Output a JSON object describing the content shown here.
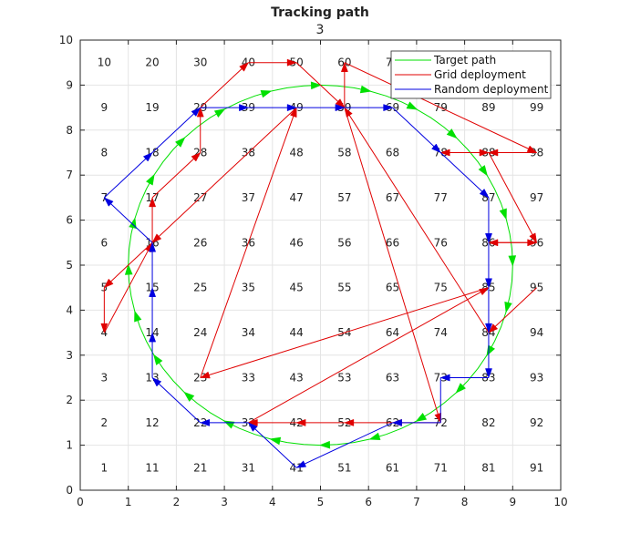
{
  "chart_data": {
    "type": "line",
    "title": "Tracking path",
    "subtitle": "3",
    "xlim": [
      0,
      10
    ],
    "ylim": [
      0,
      10
    ],
    "xticks": [
      "0",
      "1",
      "2",
      "3",
      "4",
      "5",
      "6",
      "7",
      "8",
      "9",
      "10"
    ],
    "yticks": [
      "0",
      "1",
      "2",
      "3",
      "4",
      "5",
      "6",
      "7",
      "8",
      "9",
      "10"
    ],
    "grid": true,
    "legend_position": "top-right",
    "cell_labels": [
      {
        "x": 0.5,
        "y": 9.5,
        "t": "10"
      },
      {
        "x": 0.5,
        "y": 8.5,
        "t": "9"
      },
      {
        "x": 0.5,
        "y": 7.5,
        "t": "8"
      },
      {
        "x": 0.5,
        "y": 6.5,
        "t": "7"
      },
      {
        "x": 0.5,
        "y": 5.5,
        "t": "6"
      },
      {
        "x": 0.5,
        "y": 4.5,
        "t": "5"
      },
      {
        "x": 0.5,
        "y": 3.5,
        "t": "4"
      },
      {
        "x": 0.5,
        "y": 2.5,
        "t": "3"
      },
      {
        "x": 0.5,
        "y": 1.5,
        "t": "2"
      },
      {
        "x": 0.5,
        "y": 0.5,
        "t": "1"
      },
      {
        "x": 1.5,
        "y": 9.5,
        "t": "20"
      },
      {
        "x": 1.5,
        "y": 8.5,
        "t": "19"
      },
      {
        "x": 1.5,
        "y": 7.5,
        "t": "18"
      },
      {
        "x": 1.5,
        "y": 6.5,
        "t": "17"
      },
      {
        "x": 1.5,
        "y": 5.5,
        "t": "16"
      },
      {
        "x": 1.5,
        "y": 4.5,
        "t": "15"
      },
      {
        "x": 1.5,
        "y": 3.5,
        "t": "14"
      },
      {
        "x": 1.5,
        "y": 2.5,
        "t": "13"
      },
      {
        "x": 1.5,
        "y": 1.5,
        "t": "12"
      },
      {
        "x": 1.5,
        "y": 0.5,
        "t": "11"
      },
      {
        "x": 2.5,
        "y": 9.5,
        "t": "30"
      },
      {
        "x": 2.5,
        "y": 8.5,
        "t": "29"
      },
      {
        "x": 2.5,
        "y": 7.5,
        "t": "28"
      },
      {
        "x": 2.5,
        "y": 6.5,
        "t": "27"
      },
      {
        "x": 2.5,
        "y": 5.5,
        "t": "26"
      },
      {
        "x": 2.5,
        "y": 4.5,
        "t": "25"
      },
      {
        "x": 2.5,
        "y": 3.5,
        "t": "24"
      },
      {
        "x": 2.5,
        "y": 2.5,
        "t": "23"
      },
      {
        "x": 2.5,
        "y": 1.5,
        "t": "22"
      },
      {
        "x": 2.5,
        "y": 0.5,
        "t": "21"
      },
      {
        "x": 3.5,
        "y": 9.5,
        "t": "40"
      },
      {
        "x": 3.5,
        "y": 8.5,
        "t": "39"
      },
      {
        "x": 3.5,
        "y": 7.5,
        "t": "38"
      },
      {
        "x": 3.5,
        "y": 6.5,
        "t": "37"
      },
      {
        "x": 3.5,
        "y": 5.5,
        "t": "36"
      },
      {
        "x": 3.5,
        "y": 4.5,
        "t": "35"
      },
      {
        "x": 3.5,
        "y": 3.5,
        "t": "34"
      },
      {
        "x": 3.5,
        "y": 2.5,
        "t": "33"
      },
      {
        "x": 3.5,
        "y": 1.5,
        "t": "32"
      },
      {
        "x": 3.5,
        "y": 0.5,
        "t": "31"
      },
      {
        "x": 4.5,
        "y": 9.5,
        "t": "50"
      },
      {
        "x": 4.5,
        "y": 8.5,
        "t": "49"
      },
      {
        "x": 4.5,
        "y": 7.5,
        "t": "48"
      },
      {
        "x": 4.5,
        "y": 6.5,
        "t": "47"
      },
      {
        "x": 4.5,
        "y": 5.5,
        "t": "46"
      },
      {
        "x": 4.5,
        "y": 4.5,
        "t": "45"
      },
      {
        "x": 4.5,
        "y": 3.5,
        "t": "44"
      },
      {
        "x": 4.5,
        "y": 2.5,
        "t": "43"
      },
      {
        "x": 4.5,
        "y": 1.5,
        "t": "42"
      },
      {
        "x": 4.5,
        "y": 0.5,
        "t": "41"
      },
      {
        "x": 5.5,
        "y": 9.5,
        "t": "60"
      },
      {
        "x": 5.5,
        "y": 8.5,
        "t": "59"
      },
      {
        "x": 5.5,
        "y": 7.5,
        "t": "58"
      },
      {
        "x": 5.5,
        "y": 6.5,
        "t": "57"
      },
      {
        "x": 5.5,
        "y": 5.5,
        "t": "56"
      },
      {
        "x": 5.5,
        "y": 4.5,
        "t": "55"
      },
      {
        "x": 5.5,
        "y": 3.5,
        "t": "54"
      },
      {
        "x": 5.5,
        "y": 2.5,
        "t": "53"
      },
      {
        "x": 5.5,
        "y": 1.5,
        "t": "52"
      },
      {
        "x": 5.5,
        "y": 0.5,
        "t": "51"
      },
      {
        "x": 6.5,
        "y": 9.5,
        "t": "70"
      },
      {
        "x": 6.5,
        "y": 8.5,
        "t": "69"
      },
      {
        "x": 6.5,
        "y": 7.5,
        "t": "68"
      },
      {
        "x": 6.5,
        "y": 6.5,
        "t": "67"
      },
      {
        "x": 6.5,
        "y": 5.5,
        "t": "66"
      },
      {
        "x": 6.5,
        "y": 4.5,
        "t": "65"
      },
      {
        "x": 6.5,
        "y": 3.5,
        "t": "64"
      },
      {
        "x": 6.5,
        "y": 2.5,
        "t": "63"
      },
      {
        "x": 6.5,
        "y": 1.5,
        "t": "62"
      },
      {
        "x": 6.5,
        "y": 0.5,
        "t": "61"
      },
      {
        "x": 7.5,
        "y": 9.5,
        "t": "80"
      },
      {
        "x": 7.5,
        "y": 8.5,
        "t": "79"
      },
      {
        "x": 7.5,
        "y": 7.5,
        "t": "78"
      },
      {
        "x": 7.5,
        "y": 6.5,
        "t": "77"
      },
      {
        "x": 7.5,
        "y": 5.5,
        "t": "76"
      },
      {
        "x": 7.5,
        "y": 4.5,
        "t": "75"
      },
      {
        "x": 7.5,
        "y": 3.5,
        "t": "74"
      },
      {
        "x": 7.5,
        "y": 2.5,
        "t": "73"
      },
      {
        "x": 7.5,
        "y": 1.5,
        "t": "72"
      },
      {
        "x": 7.5,
        "y": 0.5,
        "t": "71"
      },
      {
        "x": 8.5,
        "y": 9.5,
        "t": "90"
      },
      {
        "x": 8.5,
        "y": 8.5,
        "t": "89"
      },
      {
        "x": 8.5,
        "y": 7.5,
        "t": "88"
      },
      {
        "x": 8.5,
        "y": 6.5,
        "t": "87"
      },
      {
        "x": 8.5,
        "y": 5.5,
        "t": "86"
      },
      {
        "x": 8.5,
        "y": 4.5,
        "t": "85"
      },
      {
        "x": 8.5,
        "y": 3.5,
        "t": "84"
      },
      {
        "x": 8.5,
        "y": 2.5,
        "t": "83"
      },
      {
        "x": 8.5,
        "y": 1.5,
        "t": "82"
      },
      {
        "x": 8.5,
        "y": 0.5,
        "t": "81"
      },
      {
        "x": 9.5,
        "y": 9.5,
        "t": "100"
      },
      {
        "x": 9.5,
        "y": 8.5,
        "t": "99"
      },
      {
        "x": 9.5,
        "y": 7.5,
        "t": "98"
      },
      {
        "x": 9.5,
        "y": 6.5,
        "t": "97"
      },
      {
        "x": 9.5,
        "y": 5.5,
        "t": "96"
      },
      {
        "x": 9.5,
        "y": 4.5,
        "t": "95"
      },
      {
        "x": 9.5,
        "y": 3.5,
        "t": "94"
      },
      {
        "x": 9.5,
        "y": 2.5,
        "t": "93"
      },
      {
        "x": 9.5,
        "y": 1.5,
        "t": "92"
      },
      {
        "x": 9.5,
        "y": 0.5,
        "t": "91"
      }
    ],
    "series": [
      {
        "name": "Target path",
        "color": "#00e000",
        "circle": {
          "cx": 5,
          "cy": 5,
          "r": 4,
          "points": 72
        },
        "arrow_every": 3
      },
      {
        "name": "Grid deployment",
        "color": "#e00000",
        "points": [
          [
            9.5,
            4.5
          ],
          [
            8.5,
            3.5
          ],
          [
            5.5,
            8.5
          ],
          [
            7.5,
            1.5
          ],
          [
            7.5,
            1.5
          ],
          [
            6.5,
            1.5
          ],
          [
            5.5,
            1.5
          ],
          [
            4.5,
            1.5
          ],
          [
            3.5,
            1.5
          ],
          [
            3.5,
            1.5
          ],
          [
            8.5,
            4.5
          ],
          [
            2.5,
            2.5
          ],
          [
            4.5,
            8.5
          ],
          [
            1.5,
            5.5
          ],
          [
            0.5,
            4.5
          ],
          [
            0.5,
            3.5
          ],
          [
            1.5,
            5.5
          ],
          [
            1.5,
            6.5
          ],
          [
            2.5,
            7.5
          ],
          [
            2.5,
            8.5
          ],
          [
            3.5,
            9.5
          ],
          [
            4.5,
            9.5
          ],
          [
            5.5,
            8.5
          ],
          [
            5.5,
            9.5
          ],
          [
            9.5,
            7.5
          ],
          [
            8.5,
            7.5
          ],
          [
            7.5,
            7.5
          ],
          [
            8.5,
            7.5
          ],
          [
            9.5,
            5.5
          ],
          [
            8.5,
            5.5
          ],
          [
            9.5,
            5.5
          ]
        ],
        "no_arrow_segments": [
          3
        ]
      },
      {
        "name": "Random deployment",
        "color": "#0000e0",
        "points": [
          [
            8.5,
            3.5
          ],
          [
            8.5,
            2.5
          ],
          [
            7.5,
            2.5
          ],
          [
            7.5,
            1.5
          ],
          [
            6.5,
            1.5
          ],
          [
            4.5,
            0.5
          ],
          [
            3.5,
            1.5
          ],
          [
            3.5,
            1.5
          ],
          [
            2.5,
            1.5
          ],
          [
            1.5,
            2.5
          ],
          [
            1.5,
            3.5
          ],
          [
            1.5,
            4.5
          ],
          [
            1.5,
            5.5
          ],
          [
            0.5,
            6.5
          ],
          [
            1.5,
            7.5
          ],
          [
            1.5,
            7.5
          ],
          [
            2.5,
            8.5
          ],
          [
            3.5,
            8.5
          ],
          [
            4.5,
            8.5
          ],
          [
            5.5,
            8.5
          ],
          [
            6.5,
            8.5
          ],
          [
            7.5,
            7.5
          ],
          [
            7.5,
            7.5
          ],
          [
            8.5,
            6.5
          ],
          [
            8.5,
            5.5
          ],
          [
            8.5,
            4.5
          ],
          [
            8.5,
            3.5
          ]
        ],
        "no_arrow_segments": [
          2
        ]
      }
    ]
  }
}
